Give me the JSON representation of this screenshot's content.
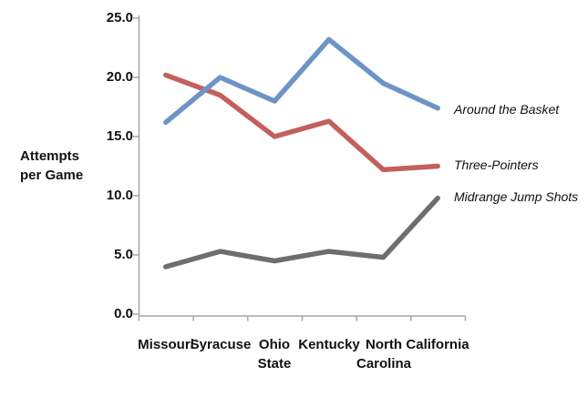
{
  "chart_data": {
    "type": "line",
    "title": "",
    "xlabel": "",
    "ylabel": "Attempts per Game",
    "ylabel_lines": {
      "line1": "Attempts",
      "line2": "per Game"
    },
    "ylim": [
      0,
      25
    ],
    "ytick_step": 5,
    "grid": false,
    "legend_position": "end-of-line-labels",
    "axis_color": "#A6A6A6",
    "categories": [
      "Missouri",
      "Syracuse",
      "Ohio State",
      "Kentucky",
      "North Carolina",
      "California"
    ],
    "x_labels": [
      {
        "line1": "Missouri",
        "line2": ""
      },
      {
        "line1": "Syracuse",
        "line2": ""
      },
      {
        "line1": "Ohio",
        "line2": "State"
      },
      {
        "line1": "Kentucky",
        "line2": ""
      },
      {
        "line1": "North",
        "line2": "Carolina"
      },
      {
        "line1": "California",
        "line2": ""
      }
    ],
    "ytick_labels": [
      "25.0",
      "20.0",
      "15.0",
      "10.0",
      "5.0",
      "0.0"
    ],
    "series": [
      {
        "name": "Around the Basket",
        "color": "#6D94C7",
        "values": [
          16.2,
          20.0,
          18.0,
          23.2,
          19.5,
          17.4
        ]
      },
      {
        "name": "Three-Pointers",
        "color": "#C1605C",
        "values": [
          20.2,
          18.5,
          15.0,
          16.3,
          12.2,
          12.5
        ]
      },
      {
        "name": "Midrange Jump Shots",
        "color": "#6E6E6E",
        "values": [
          4.0,
          5.3,
          4.5,
          5.3,
          4.8,
          9.8
        ]
      }
    ]
  }
}
